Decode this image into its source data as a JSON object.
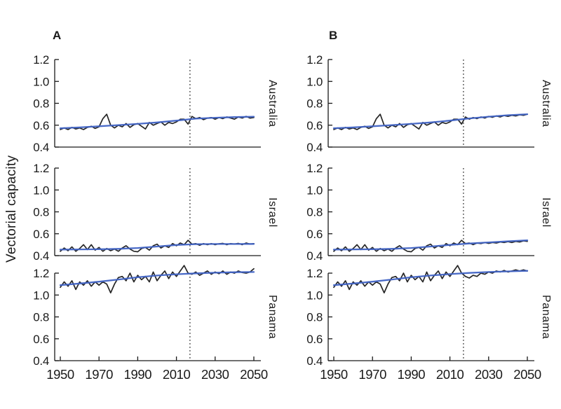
{
  "figure": {
    "ylabel": "Vectorial capacity",
    "panel_labels": [
      "A",
      "B"
    ],
    "row_labels": [
      "Australia",
      "Israel",
      "Panama"
    ],
    "colors": {
      "observed_line": "#262626",
      "trend_line": "#3f62c4",
      "axis": "#1a1a1a",
      "dashed_divider": "#111111",
      "background": "#ffffff"
    }
  },
  "chart_data": [
    {
      "id": "A-Australia",
      "type": "line",
      "column": "A",
      "row": "Australia",
      "xlim": [
        1950,
        2050
      ],
      "ylim": [
        0.4,
        1.2
      ],
      "xticks": [
        1950,
        1970,
        1990,
        2010,
        2030,
        2050
      ],
      "yticks": [
        0.4,
        0.6,
        0.8,
        1.0,
        1.2
      ],
      "vline_x": 2017,
      "show_x_labels": false,
      "grid": false,
      "x_start": 1950,
      "x_step": 2,
      "observed": [
        0.56,
        0.575,
        0.56,
        0.58,
        0.565,
        0.575,
        0.56,
        0.58,
        0.59,
        0.57,
        0.585,
        0.66,
        0.7,
        0.6,
        0.575,
        0.6,
        0.585,
        0.615,
        0.58,
        0.605,
        0.615,
        0.59,
        0.565,
        0.625,
        0.6,
        0.615,
        0.63,
        0.6,
        0.625,
        0.615,
        0.63,
        0.655,
        0.655,
        0.61,
        0.68,
        0.66,
        0.67,
        0.65,
        0.665,
        0.67,
        0.655,
        0.67,
        0.66,
        0.675,
        0.665,
        0.655,
        0.675,
        0.665,
        0.68,
        0.665,
        0.67
      ],
      "trend_knots": [
        [
          1950,
          0.572
        ],
        [
          1960,
          0.58
        ],
        [
          1970,
          0.59
        ],
        [
          1980,
          0.601
        ],
        [
          1990,
          0.612
        ],
        [
          2000,
          0.625
        ],
        [
          2010,
          0.642
        ],
        [
          2020,
          0.66
        ],
        [
          2030,
          0.668
        ],
        [
          2040,
          0.674
        ],
        [
          2050,
          0.678
        ]
      ]
    },
    {
      "id": "B-Australia",
      "type": "line",
      "column": "B",
      "row": "Australia",
      "xlim": [
        1950,
        2050
      ],
      "ylim": [
        0.4,
        1.2
      ],
      "xticks": [
        1950,
        1970,
        1990,
        2010,
        2030,
        2050
      ],
      "yticks": [
        0.4,
        0.6,
        0.8,
        1.0,
        1.2
      ],
      "vline_x": 2017,
      "show_x_labels": false,
      "grid": false,
      "x_start": 1950,
      "x_step": 2,
      "observed": [
        0.56,
        0.575,
        0.56,
        0.58,
        0.565,
        0.575,
        0.56,
        0.58,
        0.59,
        0.57,
        0.585,
        0.66,
        0.7,
        0.6,
        0.575,
        0.6,
        0.585,
        0.615,
        0.58,
        0.605,
        0.615,
        0.59,
        0.565,
        0.625,
        0.6,
        0.615,
        0.63,
        0.6,
        0.625,
        0.615,
        0.63,
        0.655,
        0.655,
        0.61,
        0.675,
        0.655,
        0.67,
        0.66,
        0.675,
        0.665,
        0.68,
        0.672,
        0.685,
        0.675,
        0.688,
        0.68,
        0.69,
        0.685,
        0.695,
        0.69,
        0.7
      ],
      "trend_knots": [
        [
          1950,
          0.572
        ],
        [
          1960,
          0.58
        ],
        [
          1970,
          0.59
        ],
        [
          1980,
          0.601
        ],
        [
          1990,
          0.612
        ],
        [
          2000,
          0.625
        ],
        [
          2010,
          0.642
        ],
        [
          2020,
          0.662
        ],
        [
          2030,
          0.678
        ],
        [
          2040,
          0.691
        ],
        [
          2050,
          0.7
        ]
      ]
    },
    {
      "id": "A-Israel",
      "type": "line",
      "column": "A",
      "row": "Israel",
      "xlim": [
        1950,
        2050
      ],
      "ylim": [
        0.4,
        1.2
      ],
      "xticks": [
        1950,
        1970,
        1990,
        2010,
        2030,
        2050
      ],
      "yticks": [
        0.4,
        0.6,
        0.8,
        1.0,
        1.2
      ],
      "vline_x": 2017,
      "show_x_labels": false,
      "grid": false,
      "x_start": 1950,
      "x_step": 2,
      "observed": [
        0.44,
        0.47,
        0.445,
        0.48,
        0.44,
        0.465,
        0.5,
        0.455,
        0.5,
        0.45,
        0.475,
        0.44,
        0.465,
        0.445,
        0.46,
        0.44,
        0.47,
        0.49,
        0.46,
        0.44,
        0.435,
        0.465,
        0.475,
        0.45,
        0.49,
        0.505,
        0.47,
        0.49,
        0.475,
        0.51,
        0.49,
        0.515,
        0.5,
        0.54,
        0.505,
        0.51,
        0.495,
        0.51,
        0.5,
        0.51,
        0.5,
        0.508,
        0.512,
        0.5,
        0.51,
        0.505,
        0.512,
        0.5,
        0.515,
        0.505,
        0.51
      ],
      "trend_knots": [
        [
          1950,
          0.455
        ],
        [
          1960,
          0.457
        ],
        [
          1970,
          0.458
        ],
        [
          1980,
          0.462
        ],
        [
          1990,
          0.47
        ],
        [
          2000,
          0.483
        ],
        [
          2010,
          0.497
        ],
        [
          2020,
          0.505
        ],
        [
          2030,
          0.506
        ],
        [
          2040,
          0.506
        ],
        [
          2050,
          0.507
        ]
      ]
    },
    {
      "id": "B-Israel",
      "type": "line",
      "column": "B",
      "row": "Israel",
      "xlim": [
        1950,
        2050
      ],
      "ylim": [
        0.4,
        1.2
      ],
      "xticks": [
        1950,
        1970,
        1990,
        2010,
        2030,
        2050
      ],
      "yticks": [
        0.4,
        0.6,
        0.8,
        1.0,
        1.2
      ],
      "vline_x": 2017,
      "show_x_labels": false,
      "grid": false,
      "x_start": 1950,
      "x_step": 2,
      "observed": [
        0.44,
        0.47,
        0.445,
        0.48,
        0.44,
        0.465,
        0.5,
        0.455,
        0.5,
        0.45,
        0.475,
        0.44,
        0.465,
        0.445,
        0.46,
        0.44,
        0.47,
        0.49,
        0.46,
        0.44,
        0.435,
        0.465,
        0.475,
        0.45,
        0.49,
        0.505,
        0.47,
        0.49,
        0.475,
        0.51,
        0.49,
        0.515,
        0.5,
        0.54,
        0.51,
        0.515,
        0.5,
        0.515,
        0.51,
        0.52,
        0.512,
        0.52,
        0.515,
        0.525,
        0.52,
        0.528,
        0.52,
        0.53,
        0.525,
        0.535,
        0.53
      ],
      "trend_knots": [
        [
          1950,
          0.455
        ],
        [
          1960,
          0.457
        ],
        [
          1970,
          0.458
        ],
        [
          1980,
          0.462
        ],
        [
          1990,
          0.47
        ],
        [
          2000,
          0.483
        ],
        [
          2010,
          0.498
        ],
        [
          2020,
          0.511
        ],
        [
          2030,
          0.521
        ],
        [
          2040,
          0.531
        ],
        [
          2050,
          0.54
        ]
      ]
    },
    {
      "id": "A-Panama",
      "type": "line",
      "column": "A",
      "row": "Panama",
      "xlim": [
        1950,
        2050
      ],
      "ylim": [
        0.4,
        1.2
      ],
      "xticks": [
        1950,
        1970,
        1990,
        2010,
        2030,
        2050
      ],
      "yticks": [
        0.4,
        0.6,
        0.8,
        1.0,
        1.2
      ],
      "vline_x": 2017,
      "show_x_labels": true,
      "grid": false,
      "x_start": 1950,
      "x_step": 2,
      "observed": [
        1.07,
        1.12,
        1.08,
        1.13,
        1.05,
        1.12,
        1.09,
        1.13,
        1.08,
        1.12,
        1.09,
        1.12,
        1.1,
        1.02,
        1.1,
        1.16,
        1.17,
        1.13,
        1.2,
        1.12,
        1.18,
        1.14,
        1.17,
        1.12,
        1.21,
        1.13,
        1.18,
        1.22,
        1.15,
        1.21,
        1.17,
        1.22,
        1.27,
        1.2,
        1.19,
        1.21,
        1.18,
        1.2,
        1.22,
        1.19,
        1.21,
        1.195,
        1.22,
        1.19,
        1.21,
        1.2,
        1.22,
        1.205,
        1.2,
        1.21,
        1.24
      ],
      "trend_knots": [
        [
          1950,
          1.09
        ],
        [
          1960,
          1.105
        ],
        [
          1970,
          1.122
        ],
        [
          1980,
          1.142
        ],
        [
          1990,
          1.162
        ],
        [
          2000,
          1.178
        ],
        [
          2010,
          1.19
        ],
        [
          2020,
          1.198
        ],
        [
          2030,
          1.204
        ],
        [
          2040,
          1.208
        ],
        [
          2050,
          1.21
        ]
      ]
    },
    {
      "id": "B-Panama",
      "type": "line",
      "column": "B",
      "row": "Panama",
      "xlim": [
        1950,
        2050
      ],
      "ylim": [
        0.4,
        1.2
      ],
      "xticks": [
        1950,
        1970,
        1990,
        2010,
        2030,
        2050
      ],
      "yticks": [
        0.4,
        0.6,
        0.8,
        1.0,
        1.2
      ],
      "vline_x": 2017,
      "show_x_labels": true,
      "grid": false,
      "x_start": 1950,
      "x_step": 2,
      "observed": [
        1.07,
        1.12,
        1.08,
        1.13,
        1.05,
        1.12,
        1.09,
        1.13,
        1.08,
        1.12,
        1.09,
        1.12,
        1.1,
        1.02,
        1.1,
        1.16,
        1.17,
        1.13,
        1.2,
        1.12,
        1.18,
        1.14,
        1.17,
        1.12,
        1.21,
        1.13,
        1.18,
        1.22,
        1.15,
        1.21,
        1.17,
        1.22,
        1.27,
        1.2,
        1.17,
        1.155,
        1.18,
        1.17,
        1.2,
        1.19,
        1.21,
        1.2,
        1.22,
        1.21,
        1.225,
        1.21,
        1.22,
        1.23,
        1.22,
        1.23,
        1.22
      ],
      "trend_knots": [
        [
          1950,
          1.09
        ],
        [
          1960,
          1.105
        ],
        [
          1970,
          1.122
        ],
        [
          1980,
          1.142
        ],
        [
          1990,
          1.162
        ],
        [
          2000,
          1.178
        ],
        [
          2010,
          1.191
        ],
        [
          2020,
          1.202
        ],
        [
          2030,
          1.21
        ],
        [
          2040,
          1.216
        ],
        [
          2050,
          1.221
        ]
      ]
    }
  ]
}
